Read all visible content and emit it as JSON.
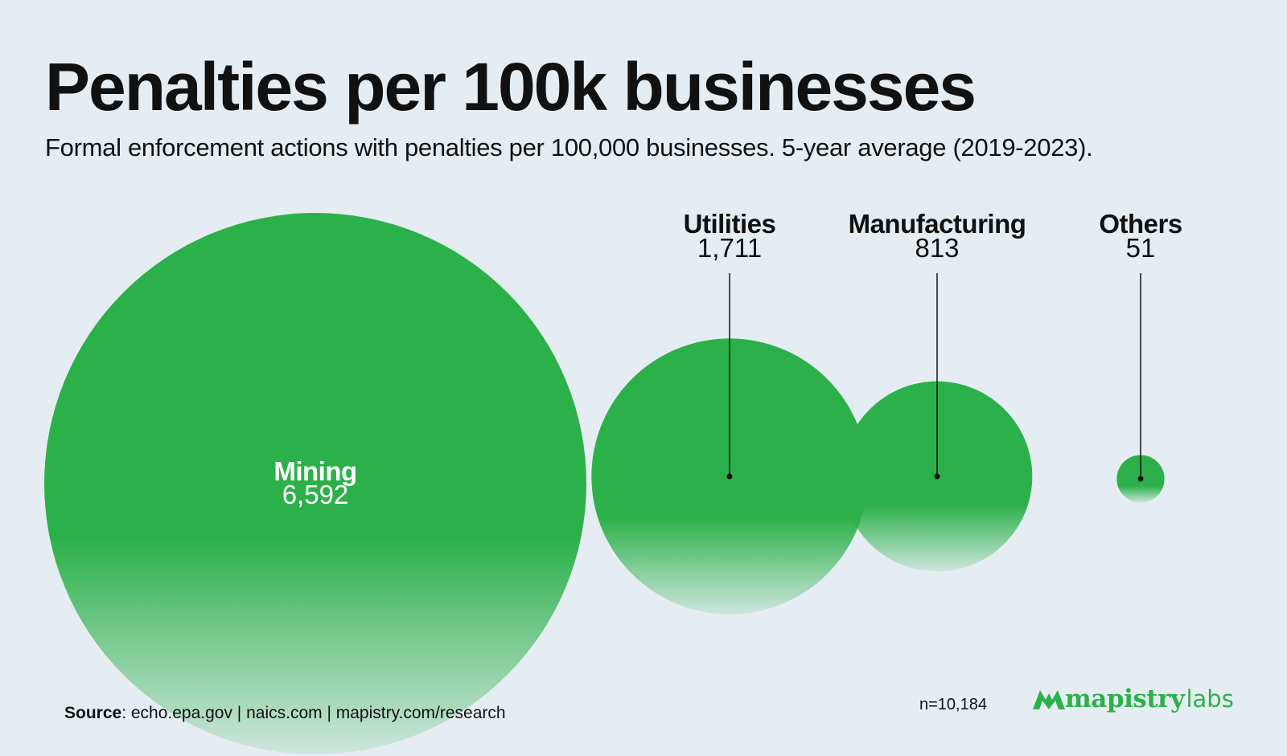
{
  "title": "Penalties per 100k businesses",
  "subtitle": "Formal enforcement actions with penalties per 100,000 businesses. 5-year average (2019-2023).",
  "chart_data": {
    "type": "bubble",
    "title": "Penalties per 100k businesses",
    "subtitle": "Formal enforcement actions with penalties per 100,000 businesses. 5-year average (2019-2023).",
    "categories": [
      "Mining",
      "Utilities",
      "Manufacturing",
      "Others"
    ],
    "values": [
      6592,
      1711,
      813,
      51
    ],
    "value_labels": [
      "6,592",
      "1,711",
      "813",
      "51"
    ],
    "label_placement": [
      "inside",
      "above",
      "above",
      "above"
    ],
    "color": "#2cb14a"
  },
  "footer": {
    "source_label": "Source",
    "source_text": ": echo.epa.gov | naics.com | mapistry.com/research",
    "n": "n=10,184"
  },
  "brand": {
    "name": "mapistry",
    "suffix": "labs",
    "icon": "mapistry-logo-icon",
    "color": "#2cb14a"
  }
}
